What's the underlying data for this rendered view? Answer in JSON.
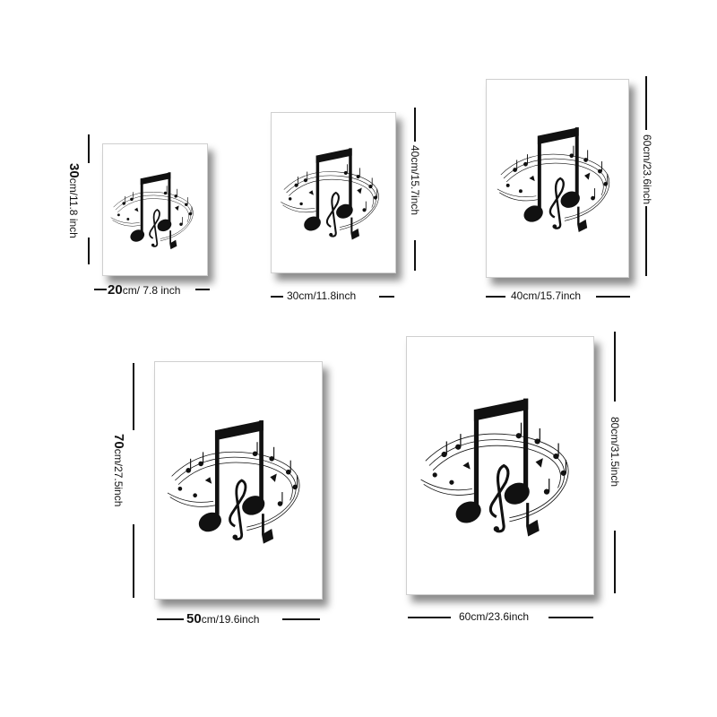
{
  "sizes": [
    {
      "width_value": "20",
      "width_rest": "cm/ 7.8 inch",
      "height_value": "30",
      "height_rest": "cm/11.8 inch"
    },
    {
      "width_label": "30cm/11.8inch",
      "height_label": "40cm/15.7inch"
    },
    {
      "width_label": "40cm/15.7inch",
      "height_label": "60cm/23.6inch"
    },
    {
      "width_value": "50",
      "width_rest": "cm/19.6inch",
      "height_value": "70",
      "height_rest": "cm/27.5inch"
    },
    {
      "width_label": "60cm/23.6inch",
      "height_label": "80cm/31.5inch"
    }
  ],
  "artwork": {
    "subject": "music-note-icon",
    "colors": {
      "ink": "#111111",
      "paper": "#ffffff"
    }
  }
}
